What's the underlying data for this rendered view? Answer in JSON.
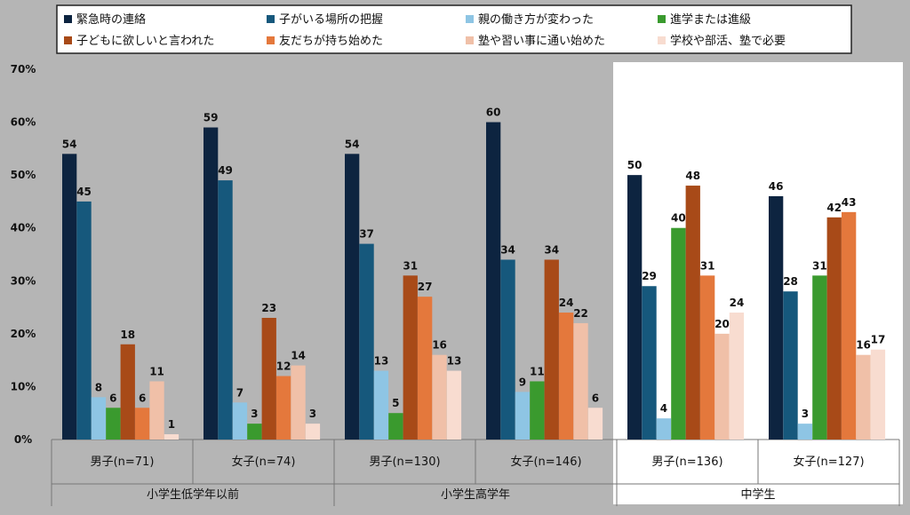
{
  "chart_data": {
    "type": "bar",
    "y_ticks": [
      "0%",
      "10%",
      "20%",
      "30%",
      "40%",
      "50%",
      "60%",
      "70%"
    ],
    "ylim": [
      0,
      70
    ],
    "grid": false,
    "legend_position": "top",
    "series": [
      {
        "name": "緊急時の連絡",
        "color": "#0d2440"
      },
      {
        "name": "子がいる場所の把握",
        "color": "#16587c"
      },
      {
        "name": "親の働き方が変わった",
        "color": "#8ec5e4"
      },
      {
        "name": "進学または進級",
        "color": "#3a9a2e"
      },
      {
        "name": "子どもに欲しいと言われた",
        "color": "#a84a18"
      },
      {
        "name": "友だちが持ち始めた",
        "color": "#e4783c"
      },
      {
        "name": "塾や習い事に通い始めた",
        "color": "#f0c0a8"
      },
      {
        "name": "学校や部活、塾で必要",
        "color": "#f8dcd0"
      }
    ],
    "groups": [
      {
        "label": "小学生低学年以前",
        "highlight": false,
        "subgroups": [
          {
            "label": "男子(n=71)",
            "bars": [
              {
                "series": 0,
                "value": 54
              },
              {
                "series": 1,
                "value": 45
              },
              {
                "series": 2,
                "value": 8
              },
              {
                "series": 3,
                "value": 6
              },
              {
                "series": 4,
                "value": 18
              },
              {
                "series": 5,
                "value": 6
              },
              {
                "series": 6,
                "value": 11
              },
              {
                "series": 7,
                "value": 1
              }
            ]
          },
          {
            "label": "女子(n=74)",
            "bars": [
              {
                "series": 0,
                "value": 59
              },
              {
                "series": 1,
                "value": 49
              },
              {
                "series": 2,
                "value": 7
              },
              {
                "series": 3,
                "value": 3
              },
              {
                "series": 4,
                "value": 23
              },
              {
                "series": 5,
                "value": 12
              },
              {
                "series": 6,
                "value": 14
              },
              {
                "series": 7,
                "value": 3
              }
            ]
          }
        ]
      },
      {
        "label": "小学生高学年",
        "highlight": false,
        "subgroups": [
          {
            "label": "男子(n=130)",
            "bars": [
              {
                "series": 0,
                "value": 54
              },
              {
                "series": 1,
                "value": 37
              },
              {
                "series": 2,
                "value": 13
              },
              {
                "series": 3,
                "value": 5
              },
              {
                "series": 4,
                "value": 31
              },
              {
                "series": 5,
                "value": 27
              },
              {
                "series": 6,
                "value": 16
              },
              {
                "series": 7,
                "value": 13
              }
            ]
          },
          {
            "label": "女子(n=146)",
            "bars": [
              {
                "series": 0,
                "value": 60
              },
              {
                "series": 1,
                "value": 34
              },
              {
                "series": 2,
                "value": 9
              },
              {
                "series": 3,
                "value": 11
              },
              {
                "series": 4,
                "value": 34
              },
              {
                "series": 5,
                "value": 24
              },
              {
                "series": 6,
                "value": 22
              },
              {
                "series": 7,
                "value": 6
              }
            ]
          }
        ]
      },
      {
        "label": "中学生",
        "highlight": true,
        "subgroups": [
          {
            "label": "男子(n=136)",
            "bars": [
              {
                "series": 0,
                "value": 50
              },
              {
                "series": 1,
                "value": 29
              },
              {
                "series": 2,
                "value": 4
              },
              {
                "series": 3,
                "value": 40
              },
              {
                "series": 4,
                "value": 48
              },
              {
                "series": 5,
                "value": 31
              },
              {
                "series": 6,
                "value": 20
              },
              {
                "series": 7,
                "value": 24
              }
            ]
          },
          {
            "label": "女子(n=127)",
            "bars": [
              {
                "series": 0,
                "value": 46
              },
              {
                "series": 1,
                "value": 28
              },
              {
                "series": 2,
                "value": 3
              },
              {
                "series": 3,
                "value": 31
              },
              {
                "series": 4,
                "value": 42
              },
              {
                "series": 5,
                "value": 43
              },
              {
                "series": 6,
                "value": 16
              },
              {
                "series": 7,
                "value": 17
              }
            ]
          }
        ]
      }
    ]
  }
}
